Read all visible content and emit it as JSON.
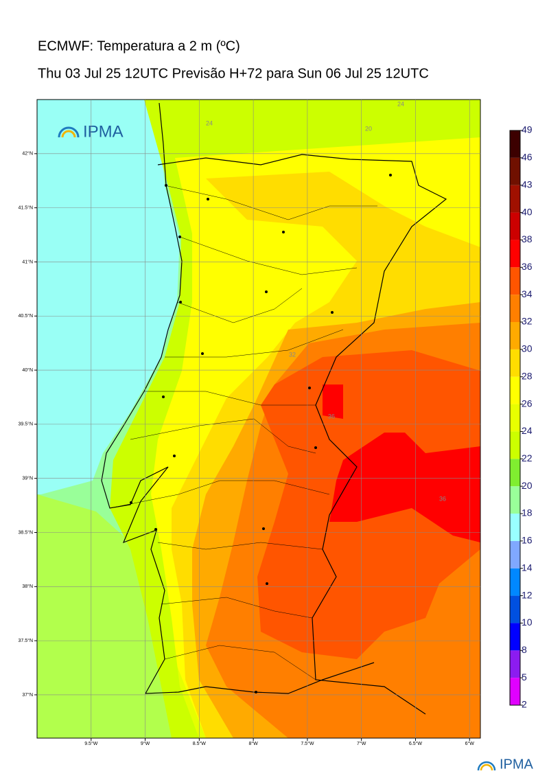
{
  "header": {
    "title": "ECMWF: Temperatura a 2 m (ºC)",
    "subtitle": "Thu 03 Jul 25 12UTC Previsão H+72 para Sun 06 Jul 25 12UTC"
  },
  "map": {
    "xlim": [
      -10,
      -5.9
    ],
    "ylim": [
      36.6,
      42.5
    ],
    "xticks": [
      {
        "value": -9.5,
        "label": "9.5°W"
      },
      {
        "value": -9,
        "label": "9°W"
      },
      {
        "value": -8.5,
        "label": "8.5°W"
      },
      {
        "value": -8,
        "label": "8°W"
      },
      {
        "value": -7.5,
        "label": "7.5°W"
      },
      {
        "value": -7,
        "label": "7°W"
      },
      {
        "value": -6.5,
        "label": "6.5°W"
      },
      {
        "value": -6,
        "label": "6°W"
      }
    ],
    "yticks": [
      {
        "value": 42,
        "label": "42°N"
      },
      {
        "value": 41.5,
        "label": "41.5°N"
      },
      {
        "value": 41,
        "label": "41°N"
      },
      {
        "value": 40.5,
        "label": "40.5°N"
      },
      {
        "value": 40,
        "label": "40°N"
      },
      {
        "value": 39.5,
        "label": "39.5°N"
      },
      {
        "value": 39,
        "label": "39°N"
      },
      {
        "value": 38.5,
        "label": "38.5°N"
      },
      {
        "value": 38,
        "label": "38°N"
      },
      {
        "value": 37.5,
        "label": "37.5°N"
      },
      {
        "value": 37,
        "label": "37°N"
      }
    ],
    "grid": true,
    "contour_labels": [
      "24",
      "24",
      "20",
      "32",
      "36",
      "36"
    ],
    "logo": "IPMA"
  },
  "colorbar": {
    "levels": [
      2,
      5,
      8,
      10,
      12,
      14,
      16,
      18,
      20,
      22,
      24,
      26,
      28,
      30,
      32,
      34,
      36,
      38,
      40,
      43,
      46,
      49
    ],
    "colors": [
      "#e000ff",
      "#8c1cf0",
      "#0000ff",
      "#0050e0",
      "#0088ff",
      "#80a8ff",
      "#99ffff",
      "#99ff99",
      "#80ee30",
      "#ccff00",
      "#e8ff00",
      "#ffff00",
      "#ffdd00",
      "#ffaa00",
      "#ff7f00",
      "#ff5500",
      "#ff0000",
      "#cc0000",
      "#a01000",
      "#701000",
      "#3c0000"
    ]
  },
  "footer": {
    "logo": "IPMA"
  }
}
